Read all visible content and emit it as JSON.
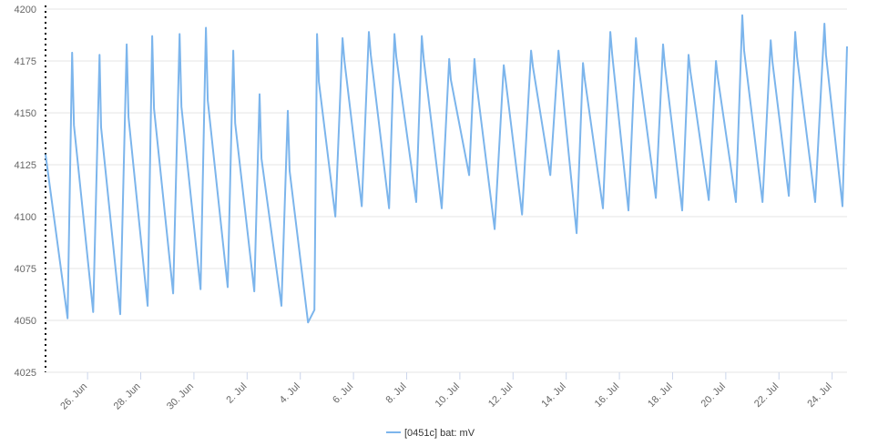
{
  "chart_data": {
    "type": "line",
    "x": [
      24.42,
      25.25,
      25.42,
      25.49,
      26.21,
      26.45,
      26.51,
      27.23,
      27.47,
      27.54,
      28.26,
      28.43,
      28.5,
      29.22,
      29.46,
      29.53,
      30.25,
      30.45,
      30.52,
      31.27,
      31.48,
      31.55,
      32.27,
      32.47,
      32.54,
      33.29,
      33.53,
      33.6,
      34.29,
      34.53,
      34.63,
      34.7,
      35.32,
      35.59,
      35.66,
      36.31,
      36.58,
      36.65,
      37.34,
      37.54,
      37.61,
      38.36,
      38.57,
      38.64,
      39.32,
      39.6,
      39.66,
      40.35,
      40.55,
      40.62,
      41.31,
      41.65,
      41.72,
      42.34,
      42.68,
      42.75,
      43.4,
      43.71,
      43.77,
      44.39,
      44.63,
      44.7,
      45.38,
      45.66,
      45.73,
      46.34,
      46.62,
      46.69,
      47.37,
      47.64,
      47.71,
      48.36,
      48.6,
      48.67,
      49.36,
      49.63,
      49.7,
      50.38,
      50.62,
      50.69,
      51.38,
      51.69,
      51.75,
      52.37,
      52.61,
      52.68,
      53.36,
      53.71,
      53.77,
      54.39,
      54.56
    ],
    "series": [
      {
        "name": "[0451c] bat: mV",
        "color": "#7cb5ec",
        "values": [
          4130,
          4051,
          4179,
          4144,
          4054,
          4178,
          4143,
          4053,
          4183,
          4148,
          4057,
          4187,
          4152,
          4063,
          4188,
          4153,
          4065,
          4191,
          4156,
          4066,
          4180,
          4145,
          4064,
          4159,
          4128,
          4057,
          4151,
          4122,
          4049,
          4055,
          4188,
          4165,
          4100,
          4186,
          4175,
          4105,
          4189,
          4178,
          4104,
          4188,
          4177,
          4107,
          4187,
          4176,
          4104,
          4176,
          4166,
          4120,
          4176,
          4165,
          4094,
          4173,
          4166,
          4101,
          4180,
          4172,
          4120,
          4180,
          4172,
          4092,
          4174,
          4166,
          4104,
          4189,
          4178,
          4103,
          4186,
          4176,
          4109,
          4183,
          4173,
          4103,
          4178,
          4170,
          4108,
          4175,
          4167,
          4107,
          4197,
          4180,
          4107,
          4185,
          4175,
          4110,
          4189,
          4177,
          4107,
          4193,
          4178,
          4105,
          4182
        ]
      }
    ],
    "xlim": [
      24.42,
      54.56
    ],
    "xticks": [
      {
        "value": 26,
        "label": "26. Jun"
      },
      {
        "value": 28,
        "label": "28. Jun"
      },
      {
        "value": 30,
        "label": "30. Jun"
      },
      {
        "value": 32,
        "label": "2. Jul"
      },
      {
        "value": 34,
        "label": "4. Jul"
      },
      {
        "value": 36,
        "label": "6. Jul"
      },
      {
        "value": 38,
        "label": "8. Jul"
      },
      {
        "value": 40,
        "label": "10. Jul"
      },
      {
        "value": 42,
        "label": "12. Jul"
      },
      {
        "value": 44,
        "label": "14. Jul"
      },
      {
        "value": 46,
        "label": "16. Jul"
      },
      {
        "value": 48,
        "label": "18. Jul"
      },
      {
        "value": 50,
        "label": "20. Jul"
      },
      {
        "value": 52,
        "label": "22. Jul"
      },
      {
        "value": 54,
        "label": "24. Jul"
      }
    ],
    "ylim": [
      4025,
      4200
    ],
    "yticks": [
      4025,
      4050,
      4075,
      4100,
      4125,
      4150,
      4175,
      4200
    ],
    "grid": true
  }
}
